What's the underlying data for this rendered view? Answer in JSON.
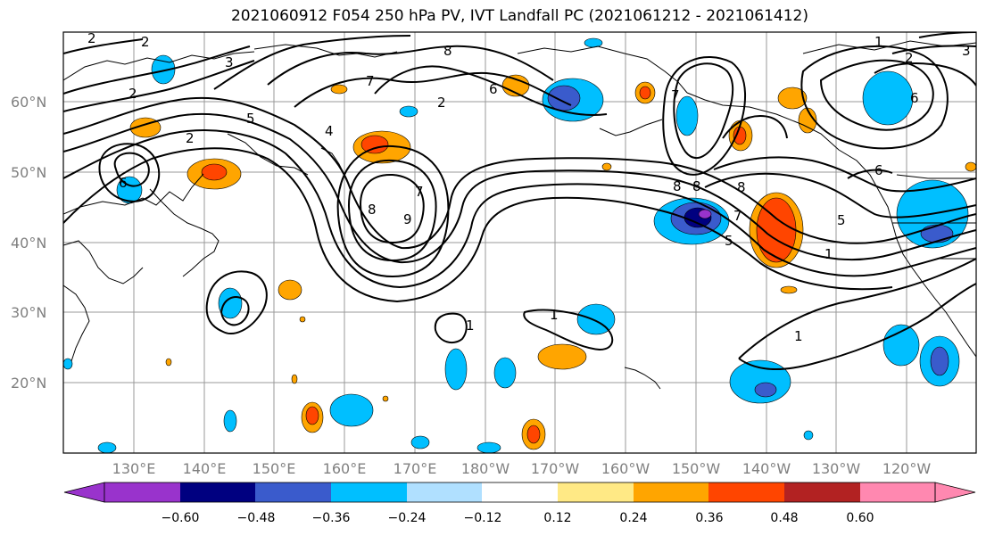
{
  "title": "2021060912 F054 250 hPa PV, IVT Landfall PC (2021061212 - 2021061412)",
  "lat_labels": [
    "60°N",
    "50°N",
    "40°N",
    "30°N",
    "20°N"
  ],
  "lon_labels": [
    "130°E",
    "140°E",
    "150°E",
    "160°E",
    "170°E",
    "180°W",
    "170°W",
    "160°W",
    "150°W",
    "140°W",
    "130°W",
    "120°W"
  ],
  "colorbar": {
    "colors": [
      "#9933cc",
      "#000080",
      "#3a5bcc",
      "#00bfff",
      "#b0e0ff",
      "#ffffff",
      "#ffe985",
      "#ffa500",
      "#ff4500",
      "#b22222",
      "#ff88b0"
    ],
    "labels": [
      "−0.60",
      "−0.48",
      "−0.36",
      "−0.24",
      "−0.12",
      "0.12",
      "0.24",
      "0.36",
      "0.48",
      "0.60"
    ]
  },
  "contour_labels": [
    "8",
    "8",
    "6",
    "5",
    "4",
    "2",
    "2",
    "2",
    "3",
    "2",
    "6",
    "7",
    "9",
    "8",
    "7",
    "8",
    "7",
    "1",
    "1",
    "1",
    "1",
    "6",
    "5",
    "7",
    "3",
    "2",
    "1",
    "2",
    "6",
    "5",
    "8"
  ]
}
